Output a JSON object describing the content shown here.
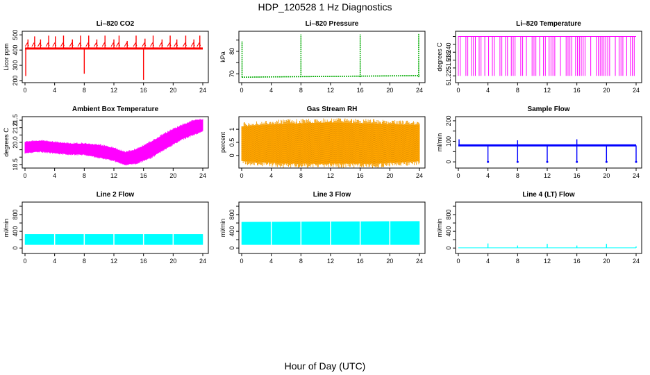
{
  "page": {
    "title": "HDP_120528  1 Hz Diagnostics",
    "xlabel": "Hour of Day (UTC)"
  },
  "colors": {
    "red": "#ff0000",
    "green": "#00aa00",
    "magenta": "#ff00ff",
    "orange": "#ffa500",
    "blue": "#0000ff",
    "cyan": "#00ffff"
  },
  "chart_data": [
    {
      "type": "line",
      "title": "Li–820 CO2",
      "ylabel": "Licor ppm",
      "color": "#ff0000",
      "xlim": [
        0,
        24
      ],
      "ylim": [
        200,
        510
      ],
      "xticks": [
        0,
        4,
        8,
        12,
        16,
        20,
        24
      ],
      "yticks": [
        200,
        300,
        400,
        500
      ],
      "baseline": 410,
      "spikes": [
        {
          "x": 0.1,
          "y": 230
        },
        {
          "x": 0.4,
          "y": 470
        },
        {
          "x": 1.3,
          "y": 490
        },
        {
          "x": 2.1,
          "y": 470
        },
        {
          "x": 3.2,
          "y": 495
        },
        {
          "x": 4.1,
          "y": 490
        },
        {
          "x": 5.2,
          "y": 495
        },
        {
          "x": 6.4,
          "y": 470
        },
        {
          "x": 7.5,
          "y": 495
        },
        {
          "x": 8.0,
          "y": 245
        },
        {
          "x": 8.6,
          "y": 495
        },
        {
          "x": 9.7,
          "y": 470
        },
        {
          "x": 10.8,
          "y": 495
        },
        {
          "x": 12.0,
          "y": 470
        },
        {
          "x": 12.7,
          "y": 495
        },
        {
          "x": 13.8,
          "y": 460
        },
        {
          "x": 15.0,
          "y": 495
        },
        {
          "x": 16.0,
          "y": 205
        },
        {
          "x": 16.2,
          "y": 475
        },
        {
          "x": 17.3,
          "y": 495
        },
        {
          "x": 18.5,
          "y": 470
        },
        {
          "x": 19.6,
          "y": 495
        },
        {
          "x": 20.5,
          "y": 470
        },
        {
          "x": 21.7,
          "y": 495
        },
        {
          "x": 22.8,
          "y": 470
        },
        {
          "x": 23.6,
          "y": 495
        }
      ]
    },
    {
      "type": "line",
      "title": "Li–820 Pressure",
      "ylabel": "kPa",
      "color": "#00aa00",
      "xlim": [
        0,
        24
      ],
      "ylim": [
        67,
        88
      ],
      "xticks": [
        0,
        4,
        8,
        12,
        16,
        20,
        24
      ],
      "yticks": [
        70,
        75,
        80,
        85
      ],
      "labeled_yticks": [
        70,
        80
      ],
      "baseline_start": 68.5,
      "baseline_end": 69.2,
      "spikes": [
        {
          "x": 0.05,
          "y": 84.5
        },
        {
          "x": 8.0,
          "y": 87.5
        },
        {
          "x": 16.0,
          "y": 87.5
        },
        {
          "x": 23.9,
          "y": 88
        }
      ]
    },
    {
      "type": "line",
      "title": "Li–820 Temperature",
      "ylabel": "degrees C",
      "color": "#ff00ff",
      "xlim": [
        0,
        24
      ],
      "ylim": [
        51.222,
        51.252
      ],
      "xticks": [
        0,
        4,
        8,
        12,
        16,
        20,
        24
      ],
      "yticks": [
        51.225,
        51.23,
        51.235,
        51.24,
        51.245,
        51.25
      ],
      "yticklabels": [
        "51.225",
        "",
        "51.235",
        "51.240",
        "",
        ""
      ],
      "high": 51.25,
      "low": 51.225
    },
    {
      "type": "area",
      "title": "Ambient Box Temperature",
      "ylabel": "degrees C",
      "color": "#ff00ff",
      "xlim": [
        0,
        24
      ],
      "ylim": [
        18.4,
        21.6
      ],
      "xticks": [
        0,
        4,
        8,
        12,
        16,
        20,
        24
      ],
      "yticks": [
        18.5,
        19.0,
        19.5,
        20.0,
        20.5,
        21.0,
        21.5
      ],
      "yticklabels": [
        "18.5",
        "",
        "",
        "20.0",
        "",
        "21.0",
        "21.5"
      ],
      "band": [
        {
          "x": 0,
          "lo": 19.3,
          "hi": 20.0
        },
        {
          "x": 2,
          "lo": 19.4,
          "hi": 20.1
        },
        {
          "x": 4,
          "lo": 19.3,
          "hi": 20.0
        },
        {
          "x": 6,
          "lo": 19.2,
          "hi": 19.9
        },
        {
          "x": 8,
          "lo": 19.2,
          "hi": 19.9
        },
        {
          "x": 10,
          "lo": 19.0,
          "hi": 19.8
        },
        {
          "x": 12,
          "lo": 18.8,
          "hi": 19.6
        },
        {
          "x": 13.5,
          "lo": 18.5,
          "hi": 19.3
        },
        {
          "x": 15,
          "lo": 18.6,
          "hi": 19.5
        },
        {
          "x": 17,
          "lo": 19.0,
          "hi": 20.0
        },
        {
          "x": 19,
          "lo": 19.6,
          "hi": 20.6
        },
        {
          "x": 21,
          "lo": 20.2,
          "hi": 21.1
        },
        {
          "x": 23,
          "lo": 20.6,
          "hi": 21.5
        },
        {
          "x": 24,
          "lo": 20.8,
          "hi": 21.5
        }
      ]
    },
    {
      "type": "area",
      "title": "Gas Stream RH",
      "ylabel": "percent",
      "color": "#ffa500",
      "xlim": [
        0,
        24
      ],
      "ylim": [
        -0.4,
        1.4
      ],
      "xticks": [
        0,
        4,
        8,
        12,
        16,
        20,
        24
      ],
      "yticks": [
        0.0,
        0.5,
        1.0
      ],
      "band": [
        {
          "x": 0,
          "lo": -0.2,
          "hi": 1.1
        },
        {
          "x": 6,
          "lo": -0.3,
          "hi": 1.2
        },
        {
          "x": 12,
          "lo": -0.3,
          "hi": 1.25
        },
        {
          "x": 18,
          "lo": -0.3,
          "hi": 1.2
        },
        {
          "x": 24,
          "lo": -0.2,
          "hi": 1.15
        }
      ]
    },
    {
      "type": "line",
      "title": "Sample Flow",
      "ylabel": "ml/min",
      "color": "#0000ff",
      "xlim": [
        0,
        24
      ],
      "ylim": [
        -20,
        210
      ],
      "xticks": [
        0,
        4,
        8,
        12,
        16,
        20,
        24
      ],
      "yticks": [
        0,
        50,
        100,
        150,
        200
      ],
      "yticklabels": [
        "0",
        "",
        "100",
        "",
        "200"
      ],
      "baseline": 80,
      "dips": [
        {
          "x": 4.0,
          "y": 0
        },
        {
          "x": 8.0,
          "y": 0
        },
        {
          "x": 12.0,
          "y": 0
        },
        {
          "x": 16.0,
          "y": 0
        },
        {
          "x": 20.0,
          "y": 0
        },
        {
          "x": 24.0,
          "y": 0
        }
      ],
      "peaks": [
        {
          "x": 0.1,
          "y": 110
        },
        {
          "x": 8.0,
          "y": 105
        },
        {
          "x": 16.0,
          "y": 110
        }
      ]
    },
    {
      "type": "area",
      "title": "Line 2 Flow",
      "ylabel": "ml/min",
      "color": "#00ffff",
      "xlim": [
        0,
        24
      ],
      "ylim": [
        -80,
        1050
      ],
      "xticks": [
        0,
        4,
        8,
        12,
        16,
        20,
        24
      ],
      "yticks": [
        0,
        200,
        400,
        600,
        800,
        1000
      ],
      "yticklabels": [
        "0",
        "",
        "400",
        "",
        "800",
        ""
      ],
      "band": [
        {
          "x": 0,
          "lo": 80,
          "hi": 330
        },
        {
          "x": 24,
          "lo": 80,
          "hi": 330
        }
      ],
      "gaps": [
        4,
        8,
        12,
        16,
        20
      ]
    },
    {
      "type": "area",
      "title": "Line 3 Flow",
      "ylabel": "ml/min",
      "color": "#00ffff",
      "xlim": [
        0,
        24
      ],
      "ylim": [
        -80,
        1050
      ],
      "xticks": [
        0,
        4,
        8,
        12,
        16,
        20,
        24
      ],
      "yticks": [
        0,
        200,
        400,
        600,
        800,
        1000
      ],
      "yticklabels": [
        "0",
        "",
        "400",
        "",
        "800",
        ""
      ],
      "band": [
        {
          "x": 0,
          "lo": 80,
          "hi": 620
        },
        {
          "x": 24,
          "lo": 80,
          "hi": 640
        }
      ],
      "gaps": [
        4,
        8,
        12,
        16,
        20
      ]
    },
    {
      "type": "line",
      "title": "Line 4 (LT) Flow",
      "ylabel": "ml/min",
      "color": "#00ffff",
      "xlim": [
        0,
        24
      ],
      "ylim": [
        -80,
        1050
      ],
      "xticks": [
        0,
        4,
        8,
        12,
        16,
        20,
        24
      ],
      "yticks": [
        0,
        200,
        400,
        600,
        800,
        1000
      ],
      "yticklabels": [
        "0",
        "",
        "400",
        "",
        "800",
        ""
      ],
      "baseline": 5,
      "spikes": [
        {
          "x": 4.0,
          "y": 110
        },
        {
          "x": 8.0,
          "y": 60
        },
        {
          "x": 12.0,
          "y": 100
        },
        {
          "x": 16.0,
          "y": 60
        },
        {
          "x": 20.0,
          "y": 100
        },
        {
          "x": 24.0,
          "y": 40
        }
      ]
    }
  ]
}
